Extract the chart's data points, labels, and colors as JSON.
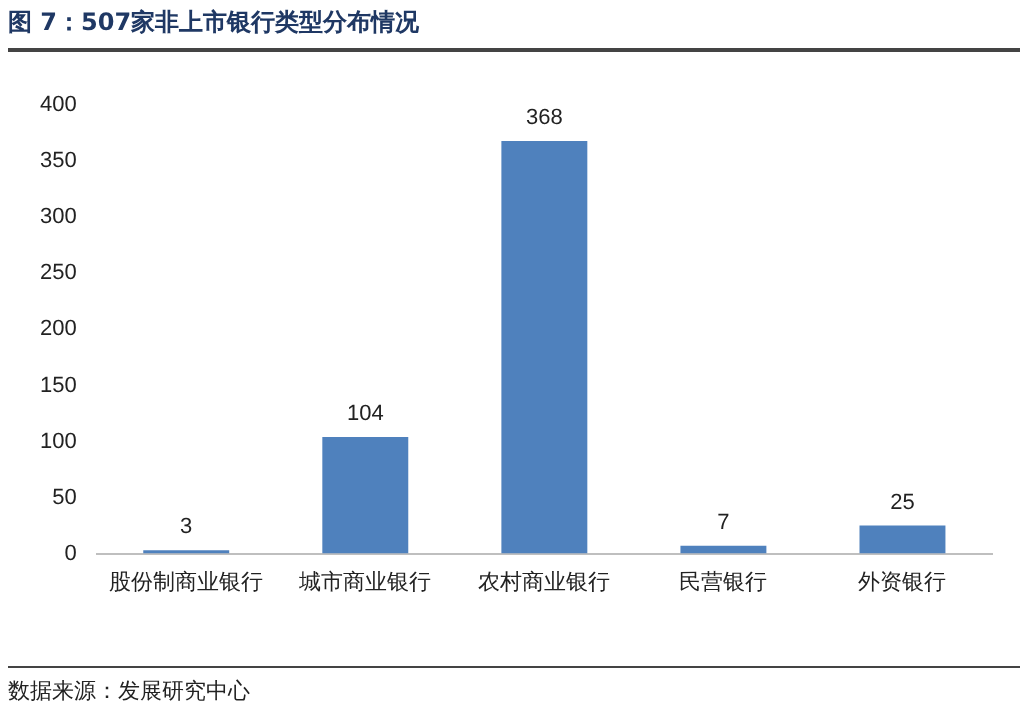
{
  "chart_data": {
    "type": "bar",
    "title": "图 7：507家非上市银行类型分布情况",
    "categories": [
      "股份制商业银行",
      "城市商业银行",
      "农村商业银行",
      "民营银行",
      "外资银行"
    ],
    "values": [
      3,
      104,
      368,
      7,
      25
    ],
    "color": "#4f81bd",
    "ylim": [
      0,
      400
    ],
    "yticks": [
      0,
      50,
      100,
      150,
      200,
      250,
      300,
      350,
      400
    ],
    "grid": false,
    "data_labels": true,
    "annotations": [
      "数据来源：发展研究中心"
    ]
  }
}
